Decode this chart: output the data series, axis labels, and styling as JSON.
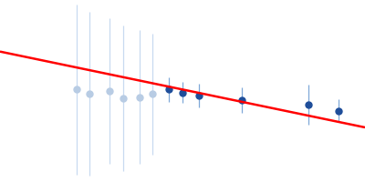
{
  "background_color": "#ffffff",
  "line_color": "#ff0000",
  "line_x": [
    -0.05,
    1.05
  ],
  "line_y": [
    0.63,
    0.38
  ],
  "points_gray": {
    "x": [
      0.18,
      0.22,
      0.28,
      0.32,
      0.37,
      0.41
    ],
    "y": [
      0.505,
      0.49,
      0.5,
      0.475,
      0.48,
      0.49
    ],
    "yerr": [
      0.28,
      0.27,
      0.24,
      0.24,
      0.22,
      0.2
    ],
    "color": "#b8cce4",
    "ecolor": "#c8daf0",
    "zorder": 2,
    "markersize": 5
  },
  "points_blue": {
    "x": [
      0.46,
      0.5,
      0.55,
      0.68,
      0.88,
      0.97
    ],
    "y": [
      0.505,
      0.495,
      0.485,
      0.47,
      0.455,
      0.435
    ],
    "yerr": [
      0.04,
      0.035,
      0.038,
      0.042,
      0.065,
      0.038
    ],
    "color": "#1f4e9a",
    "ecolor": "#7fa8d8",
    "zorder": 3,
    "markersize": 5
  },
  "xlim": [
    -0.05,
    1.05
  ],
  "ylim": [
    0.2,
    0.8
  ]
}
